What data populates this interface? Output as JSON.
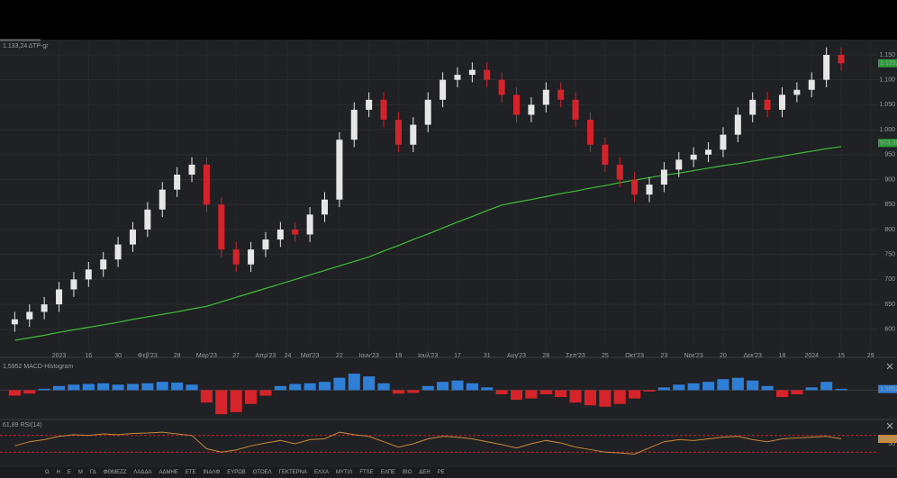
{
  "header": {
    "instrument_label": "1.133,24 ΔΤΡ-gr"
  },
  "chart_data": [
    {
      "type": "candlestick",
      "x": [
        0,
        1,
        2,
        3,
        4,
        5,
        6,
        7,
        8,
        9,
        10,
        11,
        12,
        13,
        14,
        15,
        16,
        17,
        18,
        19,
        20,
        21,
        22,
        23,
        24,
        25,
        26,
        27,
        28,
        29,
        30,
        31,
        32,
        33,
        34,
        35,
        36,
        37,
        38,
        39,
        40,
        41,
        42,
        43,
        44,
        45,
        46,
        47,
        48,
        49,
        50,
        51,
        52,
        53,
        54,
        55,
        56
      ],
      "open": [
        610,
        620,
        635,
        650,
        680,
        700,
        720,
        740,
        770,
        800,
        840,
        880,
        910,
        930,
        850,
        760,
        730,
        760,
        780,
        800,
        790,
        830,
        860,
        980,
        1040,
        1060,
        1020,
        970,
        1010,
        1060,
        1100,
        1110,
        1120,
        1100,
        1070,
        1030,
        1050,
        1080,
        1060,
        1020,
        970,
        930,
        900,
        870,
        890,
        920,
        940,
        950,
        960,
        990,
        1030,
        1060,
        1040,
        1070,
        1080,
        1100,
        1150
      ],
      "high": [
        635,
        650,
        665,
        695,
        715,
        735,
        755,
        785,
        815,
        855,
        895,
        925,
        945,
        945,
        865,
        775,
        775,
        795,
        815,
        815,
        845,
        875,
        995,
        1055,
        1075,
        1075,
        1035,
        1025,
        1075,
        1115,
        1125,
        1135,
        1135,
        1115,
        1085,
        1065,
        1095,
        1095,
        1075,
        1035,
        985,
        945,
        915,
        905,
        935,
        955,
        965,
        975,
        1005,
        1045,
        1075,
        1075,
        1085,
        1095,
        1115,
        1165,
        1165
      ],
      "low": [
        595,
        605,
        620,
        635,
        665,
        685,
        705,
        725,
        755,
        785,
        825,
        865,
        895,
        835,
        745,
        715,
        715,
        745,
        765,
        775,
        775,
        815,
        845,
        965,
        1025,
        1005,
        955,
        955,
        995,
        1045,
        1085,
        1095,
        1085,
        1055,
        1015,
        1015,
        1035,
        1045,
        1005,
        955,
        915,
        885,
        855,
        855,
        875,
        905,
        925,
        935,
        945,
        975,
        1015,
        1025,
        1025,
        1055,
        1065,
        1085,
        1118
      ],
      "close": [
        620,
        635,
        650,
        680,
        700,
        720,
        740,
        770,
        800,
        840,
        880,
        910,
        930,
        850,
        760,
        730,
        760,
        780,
        800,
        790,
        830,
        860,
        980,
        1040,
        1060,
        1020,
        970,
        1010,
        1060,
        1100,
        1110,
        1120,
        1100,
        1070,
        1030,
        1050,
        1080,
        1060,
        1020,
        970,
        930,
        900,
        870,
        890,
        920,
        940,
        950,
        960,
        990,
        1030,
        1060,
        1040,
        1070,
        1080,
        1100,
        1150,
        1133
      ],
      "ma": [
        578,
        583,
        588,
        594,
        599,
        604,
        609,
        614,
        620,
        625,
        630,
        635,
        641,
        646,
        655,
        664,
        673,
        682,
        691,
        700,
        709,
        718,
        727,
        736,
        745,
        757,
        768,
        780,
        791,
        803,
        815,
        826,
        838,
        849,
        855,
        860,
        866,
        872,
        877,
        883,
        888,
        894,
        899,
        904,
        909,
        913,
        918,
        923,
        928,
        932,
        937,
        942,
        947,
        952,
        957,
        962,
        966
      ],
      "up_color": "#e6e6e6",
      "down_color": "#d3242b",
      "ma_color": "#3fbf3a",
      "xlim": [
        -1,
        58.5
      ],
      "ylim": [
        560,
        1177
      ],
      "xticks": [
        {
          "value": 3,
          "label": "2023"
        },
        {
          "value": 5,
          "label": "16"
        },
        {
          "value": 7,
          "label": "30"
        },
        {
          "value": 9,
          "label": "Φεβ'23"
        },
        {
          "value": 11,
          "label": "28"
        },
        {
          "value": 13,
          "label": "Μαρ'23"
        },
        {
          "value": 15,
          "label": "27"
        },
        {
          "value": 17,
          "label": "Απρ'23"
        },
        {
          "value": 18.5,
          "label": "24"
        },
        {
          "value": 20,
          "label": "Μαϊ'23"
        },
        {
          "value": 22,
          "label": "22"
        },
        {
          "value": 24,
          "label": "Ιουν'23"
        },
        {
          "value": 26,
          "label": "19"
        },
        {
          "value": 28,
          "label": "Ιουλ'23"
        },
        {
          "value": 30,
          "label": "17"
        },
        {
          "value": 32,
          "label": "31"
        },
        {
          "value": 34,
          "label": "Αυγ'23"
        },
        {
          "value": 36,
          "label": "28"
        },
        {
          "value": 38,
          "label": "Σεπ'23"
        },
        {
          "value": 40,
          "label": "25"
        },
        {
          "value": 42,
          "label": "Οκτ'23"
        },
        {
          "value": 44,
          "label": "23"
        },
        {
          "value": 46,
          "label": "Νοε'23"
        },
        {
          "value": 48,
          "label": "20"
        },
        {
          "value": 50,
          "label": "Δεκ'23"
        },
        {
          "value": 52,
          "label": "18"
        },
        {
          "value": 54,
          "label": "2024"
        },
        {
          "value": 56,
          "label": "15"
        },
        {
          "value": 58,
          "label": "29"
        }
      ],
      "yticks": [
        600,
        650,
        700,
        750,
        800,
        850,
        900,
        950,
        {
          "value": 1000,
          "label": "1.000"
        },
        {
          "value": 1050,
          "label": "1.050"
        },
        {
          "value": 1100,
          "label": "1.100"
        },
        {
          "value": 1150,
          "label": "1.150"
        }
      ],
      "price_labels": [
        {
          "value": 1133.24,
          "label": "1.133,24",
          "color": "#2e9b3a"
        },
        {
          "value": 973.39,
          "label": "973,39",
          "color": "#2e9b3a"
        }
      ],
      "grid": true
    },
    {
      "type": "bar",
      "label": "1,5952 MACD-Histogram",
      "values": [
        -8,
        -5,
        2,
        6,
        8,
        9,
        10,
        8,
        9,
        10,
        12,
        11,
        8,
        -18,
        -35,
        -32,
        -20,
        -8,
        6,
        9,
        10,
        12,
        18,
        24,
        20,
        10,
        -5,
        -4,
        6,
        12,
        14,
        10,
        4,
        -6,
        -14,
        -12,
        -6,
        -10,
        -18,
        -22,
        -24,
        -20,
        -12,
        -2,
        4,
        8,
        10,
        12,
        16,
        18,
        14,
        6,
        -10,
        -6,
        4,
        12,
        2
      ],
      "up_color": "#2f7fd6",
      "down_color": "#d6242b",
      "ylim": [
        -40,
        28
      ],
      "last_label": {
        "value": 1.5952,
        "label": "1,5952"
      }
    },
    {
      "type": "line",
      "label": "61,89 RSI(14)",
      "values": [
        45,
        55,
        60,
        68,
        72,
        70,
        74,
        72,
        75,
        76,
        78,
        74,
        70,
        38,
        30,
        35,
        45,
        52,
        58,
        50,
        60,
        62,
        78,
        72,
        68,
        55,
        42,
        50,
        62,
        68,
        66,
        62,
        55,
        48,
        40,
        50,
        58,
        52,
        42,
        36,
        30,
        28,
        25,
        40,
        55,
        60,
        58,
        62,
        66,
        68,
        60,
        55,
        62,
        64,
        66,
        68,
        62
      ],
      "color": "#c8893a",
      "levels": [
        30,
        70
      ],
      "level_color": "#c0262c",
      "ylim": [
        0,
        100
      ],
      "yticks": [
        50
      ],
      "last_label": {
        "value": 61.89,
        "label": "61,89"
      }
    }
  ],
  "toolbar": {
    "items": [
      "Ω",
      "Η",
      "Ε",
      "Μ",
      "ΓΔ",
      "ΦΘΜΕΖΖ",
      "ΛΑΔΔΑ",
      "ΑΔΜΗΕ",
      "ΕΤΕ",
      "ΙΝΑΛΦ",
      "ΕΥΡΩΒ",
      "ΟΤΟΕΛ",
      "ΓΕΚΤΕΡΝΑ",
      "ΕΛΧΑ",
      "ΜΥΤΙΛ",
      "FTSE",
      "ΕΛΠΕ",
      "ΒΙΟ",
      "ΔΕΗ",
      "ΡΕ"
    ]
  }
}
